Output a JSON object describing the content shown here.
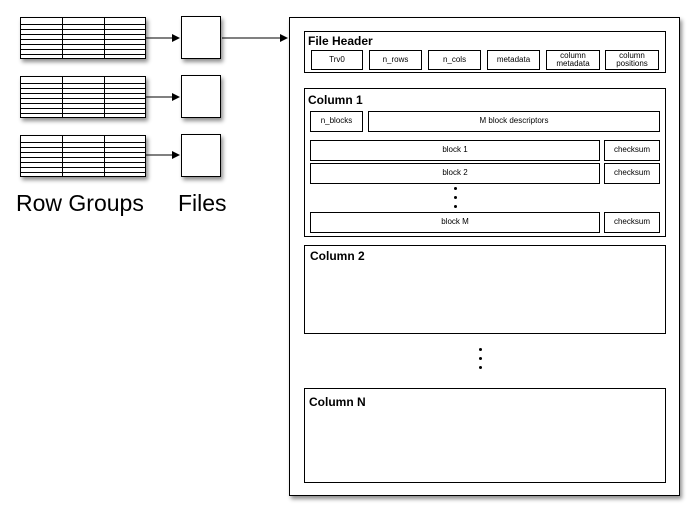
{
  "labels": {
    "row_groups": "Row Groups",
    "files": "Files"
  },
  "file_header": {
    "title": "File Header",
    "fields": [
      "Trv0",
      "n_rows",
      "n_cols",
      "metadata",
      "column\nmetadata",
      "column\npositions"
    ]
  },
  "column1": {
    "title": "Column 1",
    "n_blocks": "n_blocks",
    "descriptors": "M block descriptors",
    "blocks": [
      {
        "label": "block 1",
        "checksum": "checksum"
      },
      {
        "label": "block 2",
        "checksum": "checksum"
      },
      {
        "label": "block M",
        "checksum": "checksum"
      }
    ]
  },
  "column2": {
    "title": "Column 2"
  },
  "columnN": {
    "title": "Column N"
  }
}
